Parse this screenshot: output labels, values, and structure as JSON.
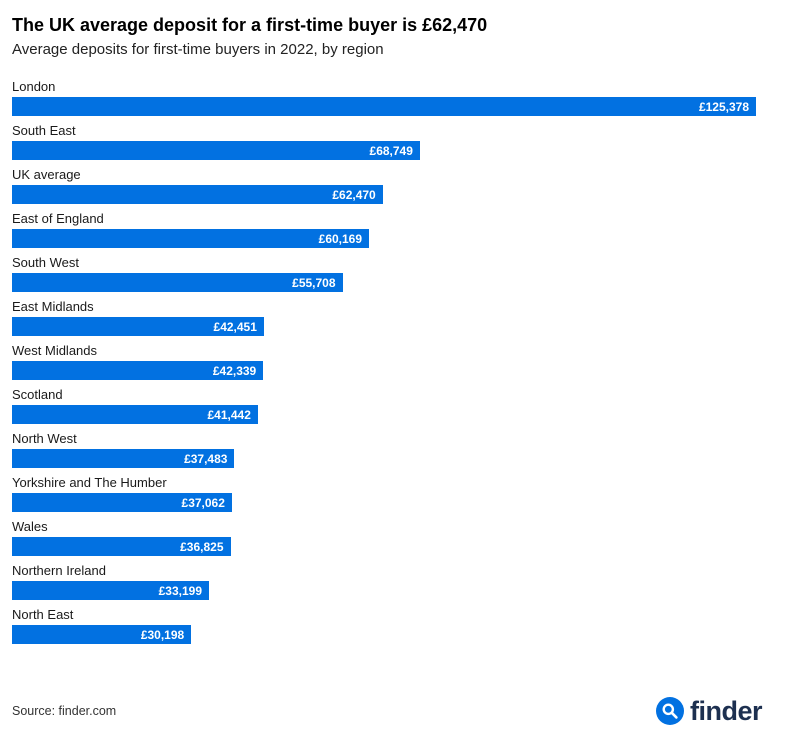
{
  "header": {
    "title": "The UK average deposit for a first-time buyer is £62,470",
    "subtitle": "Average deposits for first-time buyers in 2022, by region"
  },
  "chart_data": {
    "type": "bar",
    "orientation": "horizontal",
    "title": "The UK average deposit for a first-time buyer is £62,470",
    "subtitle": "Average deposits for first-time buyers in 2022, by region",
    "categories": [
      "London",
      "South East",
      "UK average",
      "East of England",
      "South West",
      "East Midlands",
      "West Midlands",
      "Scotland",
      "North West",
      "Yorkshire and The Humber",
      "Wales",
      "Northern Ireland",
      "North East"
    ],
    "values": [
      125378,
      68749,
      62470,
      60169,
      55708,
      42451,
      42339,
      41442,
      37483,
      37062,
      36825,
      33199,
      30198
    ],
    "value_labels": [
      "£125,378",
      "£68,749",
      "£62,470",
      "£60,169",
      "£55,708",
      "£42,451",
      "£42,339",
      "£41,442",
      "£37,483",
      "£37,062",
      "£36,825",
      "£33,199",
      "£30,198"
    ],
    "xlim": [
      0,
      125378
    ],
    "value_label_position": "inside-end",
    "grid": false,
    "legend": false,
    "bar_color": "#0271e1"
  },
  "footer": {
    "source": "Source: finder.com",
    "logo_text": "finder"
  },
  "colors": {
    "bar": "#0271e1",
    "bar_value_text": "#ffffff",
    "logo_navy": "#1d3050",
    "title_text": "#000000"
  }
}
